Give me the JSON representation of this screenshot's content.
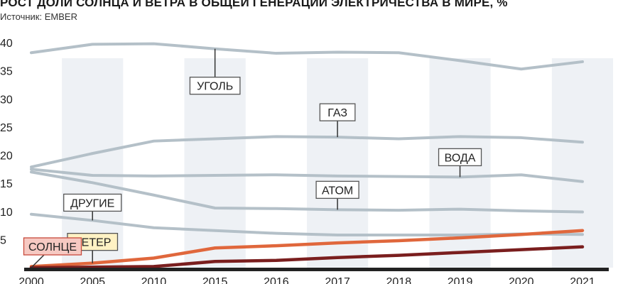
{
  "chart_data": {
    "type": "line",
    "title": "РОСТ ДОЛИ СОЛНЦА И ВЕТРА В ОБЩЕЙ ГЕНЕРАЦИИ ЭЛЕКТРИЧЕСТВА В МИРЕ, %",
    "subtitle": "Источник: EMBER",
    "categories": [
      "2000",
      "2005",
      "2010",
      "2015",
      "2016",
      "2017",
      "2018",
      "2019",
      "2020",
      "2021"
    ],
    "ylim": [
      0,
      40
    ],
    "yticks": [
      5,
      10,
      15,
      20,
      25,
      30,
      35,
      40
    ],
    "grid": false,
    "series": [
      {
        "name": "УГОЛЬ",
        "color": "#b4c0c8",
        "values": [
          38.2,
          39.7,
          39.8,
          38.9,
          38.1,
          38.3,
          38.2,
          36.8,
          35.3,
          36.6
        ]
      },
      {
        "name": "ГАЗ",
        "color": "#b4c0c8",
        "values": [
          17.9,
          20.3,
          22.5,
          22.9,
          23.3,
          23.2,
          22.9,
          23.3,
          23.1,
          22.3
        ]
      },
      {
        "name": "ВОДА",
        "color": "#b4c0c8",
        "values": [
          17.5,
          16.4,
          16.3,
          16.4,
          16.5,
          16.3,
          16.2,
          16.1,
          16.5,
          15.3
        ]
      },
      {
        "name": "АТОМ",
        "color": "#b4c0c8",
        "values": [
          17.0,
          15.1,
          12.9,
          10.6,
          10.5,
          10.3,
          10.2,
          10.4,
          10.1,
          9.9
        ]
      },
      {
        "name": "ДРУГИЕ",
        "color": "#b4c0c8",
        "values": [
          9.5,
          8.4,
          7.1,
          6.6,
          6.1,
          5.8,
          5.8,
          5.8,
          6.0,
          5.9
        ]
      },
      {
        "name": "ВЕТЕР",
        "color": "#e0673c",
        "values": [
          0.2,
          0.8,
          1.7,
          3.5,
          3.9,
          4.4,
          4.8,
          5.3,
          5.9,
          6.6
        ]
      },
      {
        "name": "СОЛНЦЕ",
        "color": "#7a1e1e",
        "values": [
          0.0,
          0.1,
          0.2,
          1.1,
          1.3,
          1.8,
          2.2,
          2.7,
          3.2,
          3.7
        ]
      }
    ],
    "labels": [
      {
        "text": "УГОЛЬ",
        "index": 3,
        "value": 38.9,
        "fill": "#ffffff",
        "stroke": "#555555"
      },
      {
        "text": "ГАЗ",
        "index": 5,
        "value": 23.2,
        "fill": "#ffffff",
        "stroke": "#555555"
      },
      {
        "text": "ВОДА",
        "index": 7,
        "value": 16.1,
        "fill": "#ffffff",
        "stroke": "#555555"
      },
      {
        "text": "АТОМ",
        "index": 5,
        "value": 10.3,
        "fill": "#ffffff",
        "stroke": "#555555"
      },
      {
        "text": "ДРУГИЕ",
        "index": 1,
        "value": 8.4,
        "fill": "#ffffff",
        "stroke": "#555555"
      },
      {
        "text": "ВЕТЕР",
        "index": 1,
        "value": 0.8,
        "fill": "#fff2c4",
        "stroke": "#555555"
      },
      {
        "text": "СОЛНЦЕ",
        "index": 0,
        "value": 0.0,
        "fill": "#f6c9c2",
        "stroke": "#c84a3c"
      }
    ]
  }
}
